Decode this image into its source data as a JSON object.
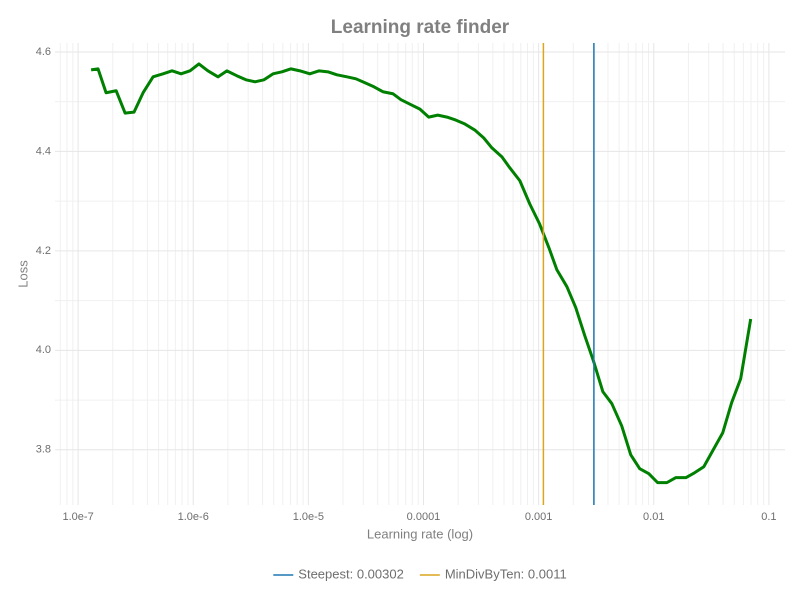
{
  "chart_data": {
    "type": "line",
    "title": "Learning rate finder",
    "x_label": "Learning rate (log)",
    "y_label": "Loss",
    "x_scale": "log",
    "grid": true,
    "minor_grid": true,
    "legend": "bottom",
    "xlim": [
      6.3e-08,
      0.138
    ],
    "ylim": [
      3.689,
      4.618
    ],
    "xticks": [
      {
        "value": 1e-07,
        "label": "1.0e-7"
      },
      {
        "value": 1e-06,
        "label": "1.0e-6"
      },
      {
        "value": 1e-05,
        "label": "1.0e-5"
      },
      0.0001,
      0.001,
      0.01,
      0.1
    ],
    "yticks": [
      3.8,
      {
        "value": 4,
        "label": "4.0"
      },
      4.2,
      4.4,
      4.6
    ],
    "color": "#008000",
    "x": [
      1.297e-07,
      1.49e-07,
      1.75e-07,
      2.14e-07,
      2.56e-07,
      3.06e-07,
      3.67e-07,
      4.48e-07,
      5.47e-07,
      6.55e-07,
      7.84e-07,
      9.38e-07,
      1.12e-06,
      1.34e-06,
      1.64e-06,
      1.96e-06,
      2.4e-06,
      2.87e-06,
      3.44e-06,
      4.12e-06,
      4.93e-06,
      5.9e-06,
      7.06e-06,
      8.45e-06,
      1.03e-05,
      1.24e-05,
      1.48e-05,
      1.77e-05,
      2.16e-05,
      2.59e-05,
      3.1e-05,
      3.71e-05,
      4.44e-05,
      5.42e-05,
      6.37e-05,
      7.78e-05,
      9.31e-05,
      0.000111,
      0.000133,
      0.00016,
      0.000191,
      0.000229,
      0.000279,
      0.000334,
      0.000393,
      0.00048,
      0.000562,
      0.000687,
      0.000839,
      0.00102,
      0.00123,
      0.00144,
      0.00176,
      0.0021,
      0.00252,
      0.00301,
      0.00361,
      0.00432,
      0.00527,
      0.00631,
      0.00755,
      0.00906,
      0.0108,
      0.013,
      0.0155,
      0.019,
      0.0227,
      0.0272,
      0.0325,
      0.0397,
      0.0475,
      0.0569,
      0.0695
    ],
    "values": [
      4.564,
      4.566,
      4.518,
      4.522,
      4.477,
      4.479,
      4.518,
      4.55,
      4.556,
      4.562,
      4.556,
      4.562,
      4.576,
      4.562,
      4.55,
      4.562,
      4.552,
      4.544,
      4.54,
      4.544,
      4.556,
      4.56,
      4.566,
      4.562,
      4.556,
      4.562,
      4.56,
      4.554,
      4.55,
      4.546,
      4.538,
      4.53,
      4.52,
      4.516,
      4.504,
      4.494,
      4.485,
      4.469,
      4.473,
      4.469,
      4.463,
      4.455,
      4.443,
      4.427,
      4.407,
      4.389,
      4.367,
      4.341,
      4.294,
      4.254,
      4.206,
      4.162,
      4.128,
      4.086,
      4.029,
      3.977,
      3.917,
      3.893,
      3.848,
      3.79,
      3.762,
      3.752,
      3.734,
      3.734,
      3.744,
      3.744,
      3.754,
      3.766,
      3.798,
      3.834,
      3.895,
      3.943,
      4.063
    ],
    "vlines": [
      {
        "name": "Steepest: 0.00302",
        "value": 0.00302,
        "color": "#1f77b4"
      },
      {
        "name": "MinDivByTen: 0.0011",
        "value": 0.0011,
        "color": "#daa520"
      }
    ]
  }
}
